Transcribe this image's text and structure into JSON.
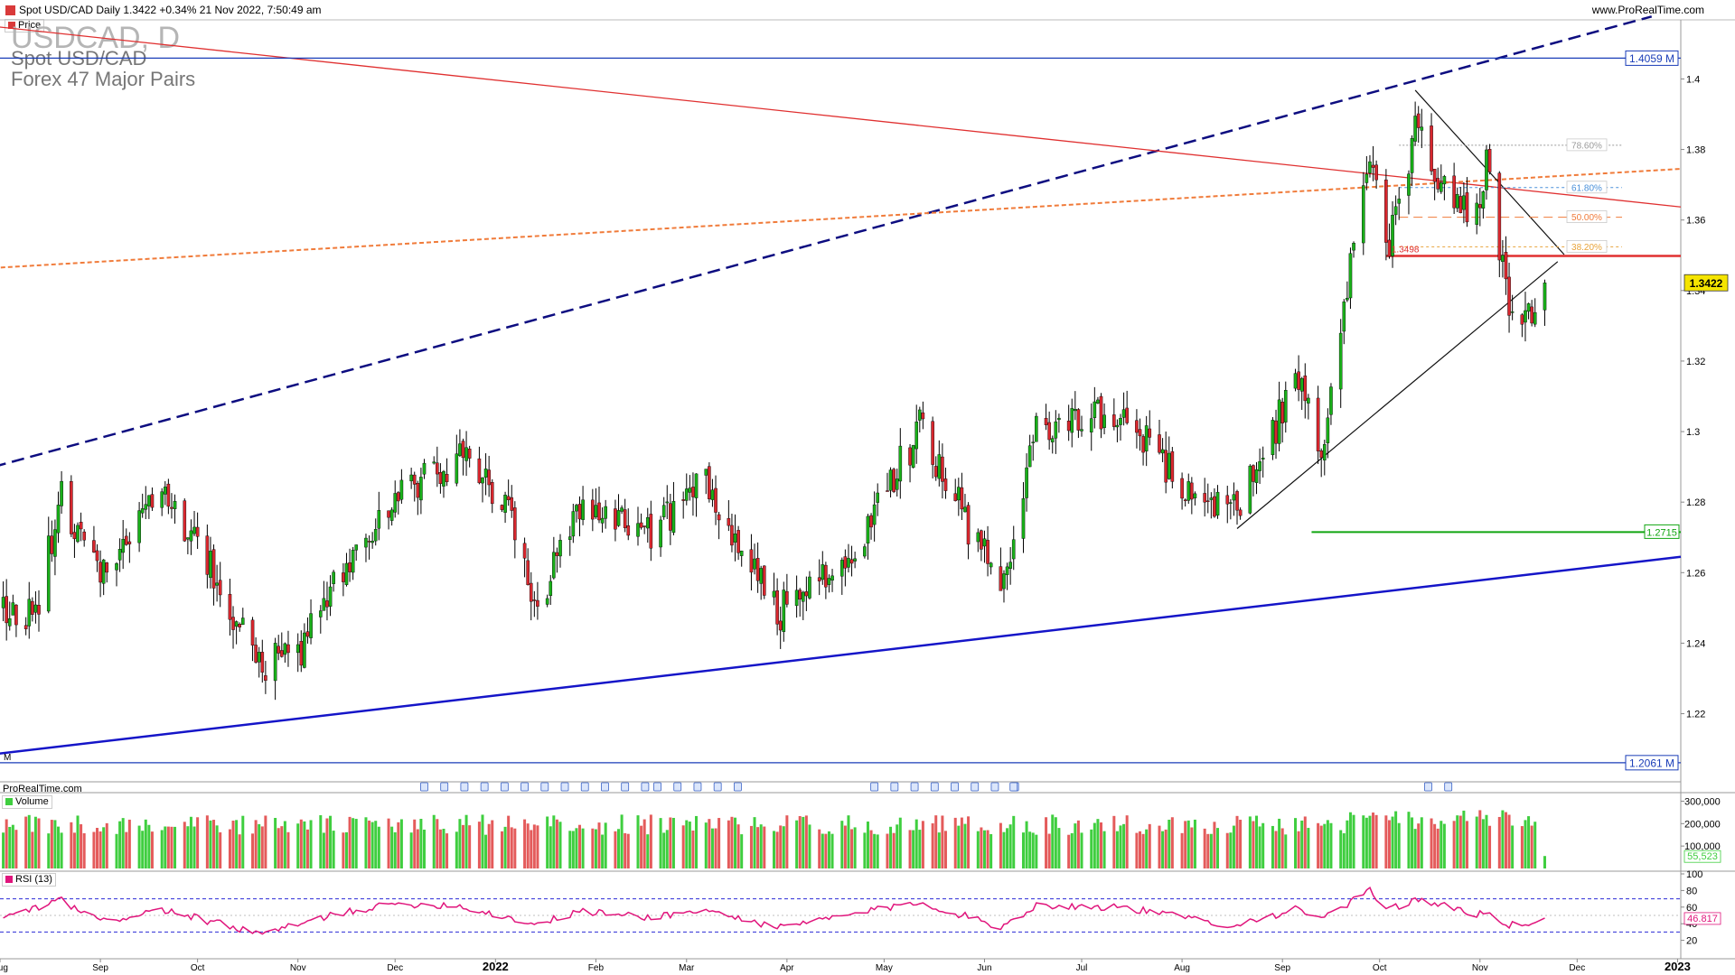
{
  "header": {
    "instrument_line": "Spot USD/CAD Daily 1.3422 +0.34% 21 Nov 2022, 7:50:49 am",
    "website": "www.ProRealTime.com",
    "price_tag": "Price"
  },
  "watermark": {
    "symbol": "USDCAD, D",
    "name": "Spot USD/CAD",
    "group": "Forex 47 Major Pairs"
  },
  "footer": {
    "brand": "ProRealTime.com",
    "monthly_marker": "M"
  },
  "colors": {
    "up_candle": "#19b019",
    "down_candle": "#d9272e",
    "volume_up": "#3fce3f",
    "volume_down": "#e45b5b",
    "rsi": "#e0157c",
    "red_resistance": "#e03030",
    "orange_dotted": "#f07b3a",
    "navy_dashed": "#0d0d80",
    "blue_support": "#1515c8",
    "green_level": "#10a510"
  },
  "chart_data": [
    {
      "type": "candlestick",
      "title": "Spot USD/CAD Daily",
      "last_price": "1.3422",
      "change": "+0.34%",
      "x_ticks": [
        "Aug",
        "Sep",
        "Oct",
        "Nov",
        "Dec",
        "2022",
        "Feb",
        "Mar",
        "Apr",
        "May",
        "Jun",
        "Jul",
        "Aug",
        "Sep",
        "Oct",
        "Nov",
        "Dec",
        "2023"
      ],
      "y_ticks": [
        "1.4",
        "1.38",
        "1.36",
        "1.34",
        "1.32",
        "1.3",
        "1.28",
        "1.26",
        "1.24",
        "1.22"
      ],
      "ylim": [
        1.2035,
        1.4165
      ],
      "x_range": [
        "2021-08-01",
        "2023-01-02"
      ],
      "price_path": [
        [
          "2021-08-01",
          1.25
        ],
        [
          "2021-08-12",
          1.249
        ],
        [
          "2021-08-20",
          1.283
        ],
        [
          "2021-08-31",
          1.259
        ],
        [
          "2021-09-20",
          1.284
        ],
        [
          "2021-10-05",
          1.261
        ],
        [
          "2021-10-21",
          1.233
        ],
        [
          "2021-11-02",
          1.238
        ],
        [
          "2021-11-16",
          1.262
        ],
        [
          "2021-12-03",
          1.282
        ],
        [
          "2021-12-20",
          1.293
        ],
        [
          "2022-01-05",
          1.277
        ],
        [
          "2022-01-14",
          1.251
        ],
        [
          "2022-01-27",
          1.277
        ],
        [
          "2022-02-17",
          1.271
        ],
        [
          "2022-03-07",
          1.285
        ],
        [
          "2022-03-30",
          1.249
        ],
        [
          "2022-04-22",
          1.267
        ],
        [
          "2022-05-12",
          1.301
        ],
        [
          "2022-05-30",
          1.268
        ],
        [
          "2022-06-06",
          1.255
        ],
        [
          "2022-06-17",
          1.302
        ],
        [
          "2022-07-13",
          1.306
        ],
        [
          "2022-08-02",
          1.283
        ],
        [
          "2022-08-17",
          1.277
        ],
        [
          "2022-09-06",
          1.315
        ],
        [
          "2022-09-13",
          1.296
        ],
        [
          "2022-09-28",
          1.38
        ],
        [
          "2022-10-04",
          1.352
        ],
        [
          "2022-10-13",
          1.39
        ],
        [
          "2022-10-21",
          1.368
        ],
        [
          "2022-10-31",
          1.362
        ],
        [
          "2022-11-03",
          1.378
        ],
        [
          "2022-11-07",
          1.353
        ],
        [
          "2022-11-10",
          1.332
        ],
        [
          "2022-11-15",
          1.332
        ],
        [
          "2022-11-21",
          1.342
        ]
      ],
      "trend_lines": [
        {
          "name": "navy dashed",
          "style": "dashed",
          "from": [
            "2021-07-30",
            1.29
          ],
          "to": [
            "2022-12-24",
            1.4177
          ]
        },
        {
          "name": "red descending",
          "style": "solid",
          "from": [
            "2021-07-30",
            1.4149
          ],
          "to": [
            "2023-01-02",
            1.3637
          ]
        },
        {
          "name": "orange dotted",
          "style": "dotted",
          "from": [
            "2021-07-30",
            1.3464
          ],
          "to": [
            "2023-01-02",
            1.3745
          ]
        },
        {
          "name": "blue support",
          "style": "solid",
          "from": [
            "2021-07-30",
            1.2085
          ],
          "to": [
            "2023-01-02",
            1.2645
          ]
        },
        {
          "name": "black rising",
          "style": "solid",
          "from": [
            "2022-08-18",
            1.2725
          ],
          "to": [
            "2022-11-25",
            1.3482
          ]
        },
        {
          "name": "black falling",
          "style": "solid",
          "from": [
            "2022-10-12",
            1.3968
          ],
          "to": [
            "2022-11-27",
            1.3502
          ]
        }
      ],
      "horizontal_levels": [
        {
          "label": "1.4059 M",
          "value": 1.4059
        },
        {
          "label": "1.2061 M",
          "value": 1.2061
        },
        {
          "label": "1.2715",
          "value": 1.2715
        },
        {
          "label": "1.3498",
          "value": 1.3498
        }
      ],
      "fibonacci": [
        {
          "label": "78.60%",
          "value": 1.3812
        },
        {
          "label": "61.80%",
          "value": 1.3692
        },
        {
          "label": "50.00%",
          "value": 1.3608
        },
        {
          "label": "38.20%",
          "value": 1.3524
        }
      ]
    },
    {
      "type": "bar",
      "title": "Volume",
      "y_ticks": [
        "300,000",
        "200,000",
        "100,000"
      ],
      "ylim": [
        0,
        330000
      ],
      "last_value": "55,523"
    },
    {
      "type": "line",
      "title": "RSI (13)",
      "y_ticks": [
        "100",
        "80",
        "60",
        "40",
        "20"
      ],
      "ylim": [
        0,
        100
      ],
      "levels": [
        70,
        30
      ],
      "last_value": "46.817",
      "rsi_path": [
        [
          "2021-08-01",
          46
        ],
        [
          "2021-08-20",
          68
        ],
        [
          "2021-09-01",
          42
        ],
        [
          "2021-09-20",
          57
        ],
        [
          "2021-10-21",
          27
        ],
        [
          "2021-11-02",
          40
        ],
        [
          "2021-11-16",
          55
        ],
        [
          "2021-12-03",
          64
        ],
        [
          "2021-12-20",
          62
        ],
        [
          "2022-01-14",
          39
        ],
        [
          "2022-01-27",
          55
        ],
        [
          "2022-02-17",
          48
        ],
        [
          "2022-03-07",
          56
        ],
        [
          "2022-03-30",
          35
        ],
        [
          "2022-04-22",
          52
        ],
        [
          "2022-05-12",
          66
        ],
        [
          "2022-06-06",
          36
        ],
        [
          "2022-06-17",
          62
        ],
        [
          "2022-07-13",
          60
        ],
        [
          "2022-08-17",
          38
        ],
        [
          "2022-09-06",
          58
        ],
        [
          "2022-09-13",
          45
        ],
        [
          "2022-09-28",
          79
        ],
        [
          "2022-10-04",
          58
        ],
        [
          "2022-10-13",
          70
        ],
        [
          "2022-10-31",
          50
        ],
        [
          "2022-11-03",
          56
        ],
        [
          "2022-11-10",
          38
        ],
        [
          "2022-11-15",
          38
        ],
        [
          "2022-11-21",
          47
        ]
      ]
    }
  ]
}
